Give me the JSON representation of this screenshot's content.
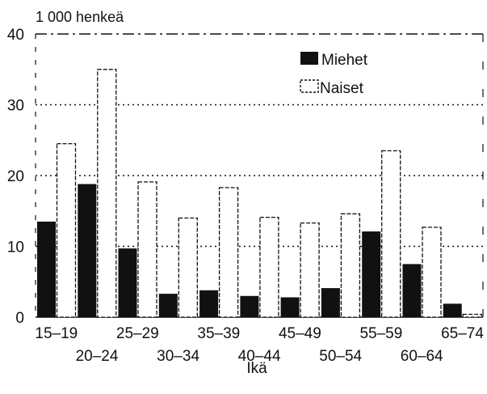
{
  "chart_data": {
    "type": "bar",
    "unit_label": "1 000 henkeä",
    "xlabel": "Ikä",
    "ylabel": "",
    "ylim": [
      0,
      40
    ],
    "yticks": [
      0,
      10,
      20,
      30,
      40
    ],
    "grid": true,
    "legend_position": "top-right",
    "categories": [
      "15–19",
      "20–24",
      "25–29",
      "30–34",
      "35–39",
      "40–44",
      "45–49",
      "50–54",
      "55–59",
      "60–64",
      "65–74"
    ],
    "series": [
      {
        "name": "Miehet",
        "color": "#111111",
        "values": [
          13.5,
          18.8,
          9.7,
          3.3,
          3.8,
          3.0,
          2.8,
          4.1,
          12.1,
          7.5,
          1.9
        ]
      },
      {
        "name": "Naiset",
        "color": "#ffffff",
        "values": [
          24.5,
          35.0,
          19.1,
          14.0,
          18.3,
          14.1,
          13.3,
          14.6,
          23.5,
          12.7,
          0.4
        ]
      }
    ]
  }
}
